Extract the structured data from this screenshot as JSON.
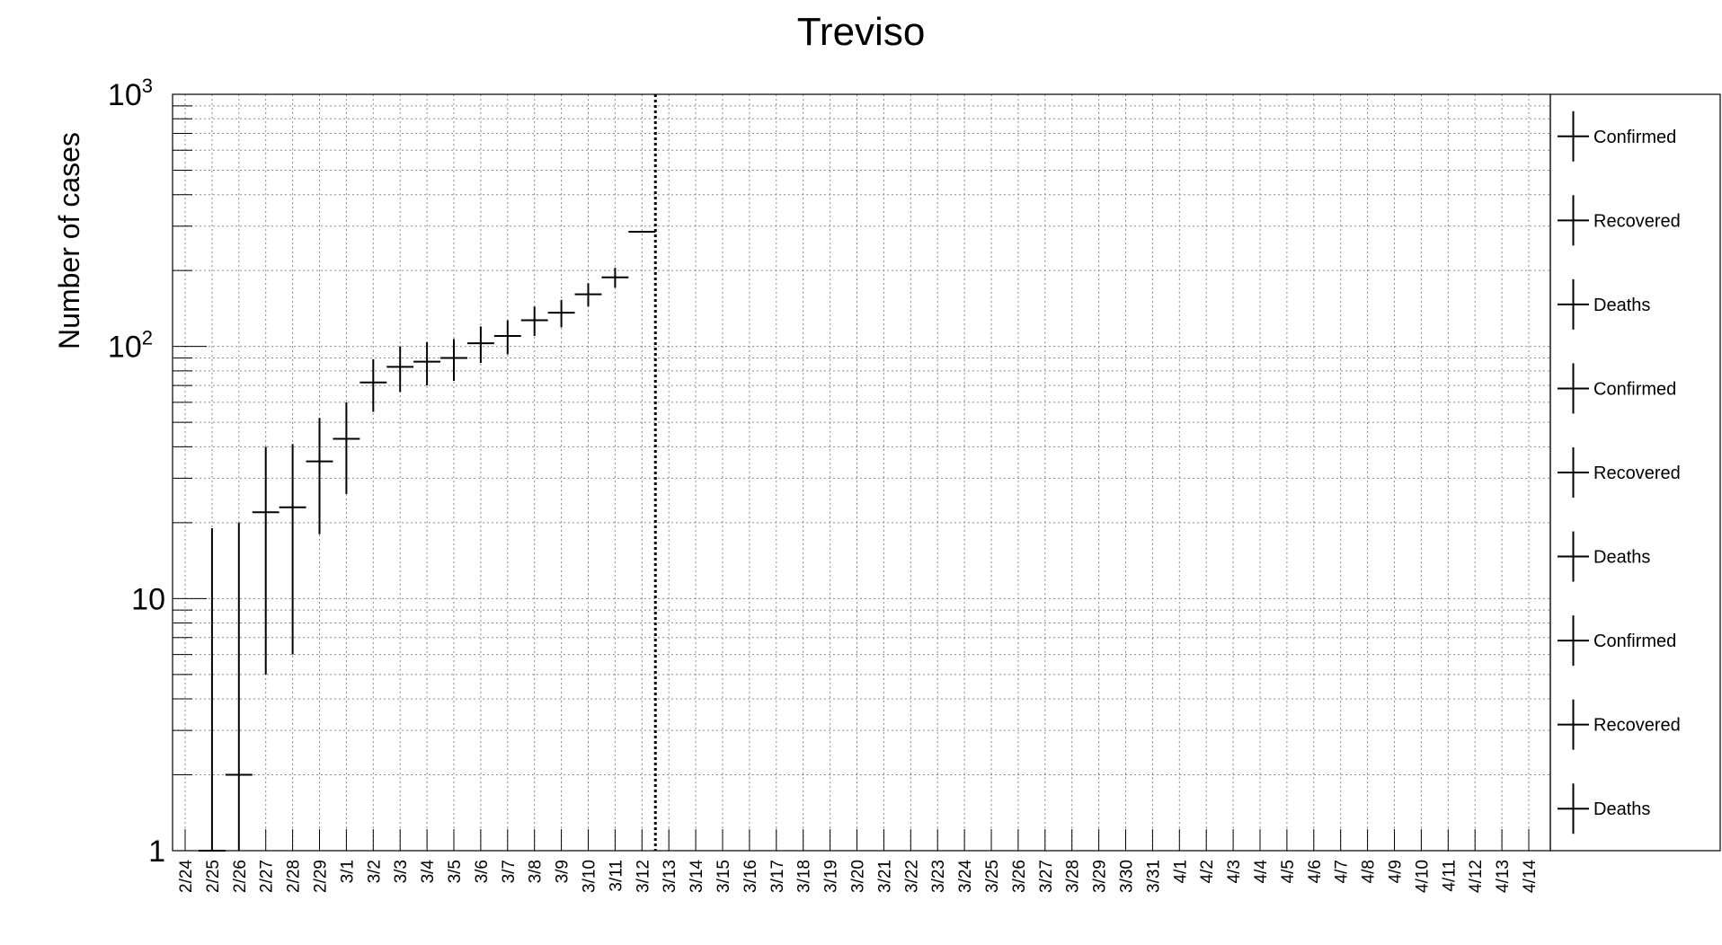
{
  "chart_data": {
    "type": "scatter",
    "title": "Treviso",
    "xlabel": "",
    "ylabel": "Number of cases",
    "yscale": "log",
    "ylim": [
      1,
      1000
    ],
    "y_tick_labels": [
      {
        "value": 1,
        "base": "1",
        "exp": ""
      },
      {
        "value": 10,
        "base": "10",
        "exp": ""
      },
      {
        "value": 100,
        "base": "10",
        "exp": "2"
      },
      {
        "value": 1000,
        "base": "10",
        "exp": "3"
      }
    ],
    "grid": true,
    "categories": [
      "2/24",
      "2/25",
      "2/26",
      "2/27",
      "2/28",
      "2/29",
      "3/1",
      "3/2",
      "3/3",
      "3/4",
      "3/5",
      "3/6",
      "3/7",
      "3/8",
      "3/9",
      "3/10",
      "3/11",
      "3/12",
      "3/13",
      "3/14",
      "3/15",
      "3/16",
      "3/17",
      "3/18",
      "3/19",
      "3/20",
      "3/21",
      "3/22",
      "3/23",
      "3/24",
      "3/25",
      "3/26",
      "3/27",
      "3/28",
      "3/29",
      "3/30",
      "3/31",
      "4/1",
      "4/2",
      "4/3",
      "4/4",
      "4/5",
      "4/6",
      "4/7",
      "4/8",
      "4/9",
      "4/10",
      "4/11",
      "4/12",
      "4/13",
      "4/14"
    ],
    "series": [
      {
        "name": "Confirmed",
        "color": "#000000",
        "points": [
          {
            "x": "2/25",
            "y": 1,
            "ylow": 1,
            "yhigh": 19
          },
          {
            "x": "2/26",
            "y": 2,
            "ylow": 1,
            "yhigh": 20
          },
          {
            "x": "2/27",
            "y": 22,
            "ylow": 5,
            "yhigh": 40
          },
          {
            "x": "2/28",
            "y": 23,
            "ylow": 6,
            "yhigh": 41
          },
          {
            "x": "2/29",
            "y": 35,
            "ylow": 18,
            "yhigh": 52
          },
          {
            "x": "3/1",
            "y": 43,
            "ylow": 26,
            "yhigh": 60
          },
          {
            "x": "3/2",
            "y": 72,
            "ylow": 55,
            "yhigh": 89
          },
          {
            "x": "3/3",
            "y": 83,
            "ylow": 66,
            "yhigh": 100
          },
          {
            "x": "3/4",
            "y": 87,
            "ylow": 70,
            "yhigh": 104
          },
          {
            "x": "3/5",
            "y": 90,
            "ylow": 73,
            "yhigh": 107
          },
          {
            "x": "3/6",
            "y": 103,
            "ylow": 86,
            "yhigh": 120
          },
          {
            "x": "3/7",
            "y": 110,
            "ylow": 93,
            "yhigh": 127
          },
          {
            "x": "3/8",
            "y": 127,
            "ylow": 110,
            "yhigh": 144
          },
          {
            "x": "3/9",
            "y": 136,
            "ylow": 119,
            "yhigh": 153
          },
          {
            "x": "3/10",
            "y": 161,
            "ylow": 144,
            "yhigh": 178
          },
          {
            "x": "3/11",
            "y": 188,
            "ylow": 171,
            "yhigh": 205
          },
          {
            "x": "3/12",
            "y": 285,
            "ylow": 285,
            "yhigh": 285
          }
        ]
      }
    ],
    "vertical_marker": {
      "x": "3/12",
      "style": "dotted"
    },
    "legend": {
      "placement": "right",
      "entries": [
        "Confirmed",
        "Recovered",
        "Deaths",
        "Confirmed",
        "Recovered",
        "Deaths",
        "Confirmed",
        "Recovered",
        "Deaths"
      ]
    }
  }
}
